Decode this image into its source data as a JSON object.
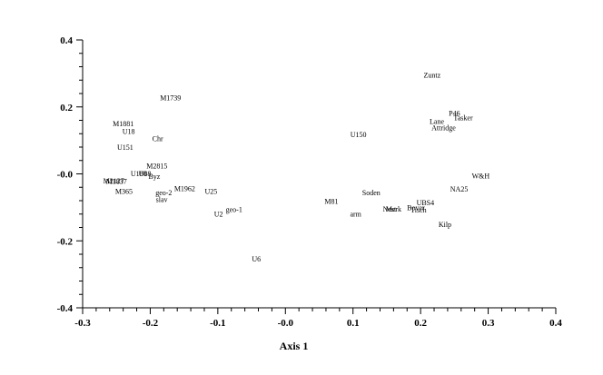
{
  "chart_data": {
    "type": "scatter",
    "xlabel": "Axis 1",
    "ylabel": "",
    "xlim": [
      -0.3,
      0.4
    ],
    "ylim": [
      -0.4,
      0.4
    ],
    "x_ticks": [
      -0.3,
      -0.2,
      -0.1,
      0.0,
      0.1,
      0.2,
      0.3,
      0.4
    ],
    "x_tick_labels": [
      "-0.3",
      "-0.2",
      "-0.1",
      "-0.0",
      "0.1",
      "0.2",
      "0.3",
      "0.4"
    ],
    "y_ticks": [
      0.4,
      0.2,
      0.0,
      -0.2,
      -0.4
    ],
    "y_tick_labels": [
      "0.4",
      "0.2",
      "-0.0",
      "-0.2",
      "-0.4"
    ],
    "grid": false,
    "points": [
      {
        "label": "Zuntz",
        "x": 0.217,
        "y": 0.295
      },
      {
        "label": "P46",
        "x": 0.25,
        "y": 0.182
      },
      {
        "label": "Tasker",
        "x": 0.263,
        "y": 0.168
      },
      {
        "label": "Lane",
        "x": 0.224,
        "y": 0.157
      },
      {
        "label": "Attridge",
        "x": 0.234,
        "y": 0.138
      },
      {
        "label": "U150",
        "x": 0.108,
        "y": 0.118
      },
      {
        "label": "W&H",
        "x": 0.289,
        "y": -0.006
      },
      {
        "label": "NA25",
        "x": 0.257,
        "y": -0.045
      },
      {
        "label": "Soden",
        "x": 0.127,
        "y": -0.055
      },
      {
        "label": "M81",
        "x": 0.068,
        "y": -0.082
      },
      {
        "label": "UBS4",
        "x": 0.207,
        "y": -0.085
      },
      {
        "label": "Bover",
        "x": 0.193,
        "y": -0.1
      },
      {
        "label": "Tisch",
        "x": 0.197,
        "y": -0.107
      },
      {
        "label": "Nest",
        "x": 0.154,
        "y": -0.104
      },
      {
        "label": "Merk",
        "x": 0.16,
        "y": -0.104
      },
      {
        "label": "arm",
        "x": 0.104,
        "y": -0.119
      },
      {
        "label": "Kilp",
        "x": 0.236,
        "y": -0.151
      },
      {
        "label": "M1739",
        "x": -0.17,
        "y": 0.228
      },
      {
        "label": "M1881",
        "x": -0.24,
        "y": 0.151
      },
      {
        "label": "U18",
        "x": -0.232,
        "y": 0.128
      },
      {
        "label": "Chr",
        "x": -0.189,
        "y": 0.106
      },
      {
        "label": "U151",
        "x": -0.237,
        "y": 0.08
      },
      {
        "label": "M2815",
        "x": -0.19,
        "y": 0.024
      },
      {
        "label": "U180",
        "x": -0.217,
        "y": 0.002
      },
      {
        "label": "U88",
        "x": -0.208,
        "y": 0.002
      },
      {
        "label": "Byz",
        "x": -0.194,
        "y": -0.007
      },
      {
        "label": "M2127",
        "x": -0.254,
        "y": -0.02
      },
      {
        "label": "M1837",
        "x": -0.25,
        "y": -0.022
      },
      {
        "label": "M1962",
        "x": -0.149,
        "y": -0.044
      },
      {
        "label": "U25",
        "x": -0.11,
        "y": -0.051
      },
      {
        "label": "geo-2",
        "x": -0.18,
        "y": -0.055
      },
      {
        "label": "M365",
        "x": -0.239,
        "y": -0.051
      },
      {
        "label": "slav",
        "x": -0.183,
        "y": -0.076
      },
      {
        "label": "geo-1",
        "x": -0.076,
        "y": -0.106
      },
      {
        "label": "U2",
        "x": -0.099,
        "y": -0.119
      },
      {
        "label": "U6",
        "x": -0.043,
        "y": -0.253
      }
    ]
  }
}
